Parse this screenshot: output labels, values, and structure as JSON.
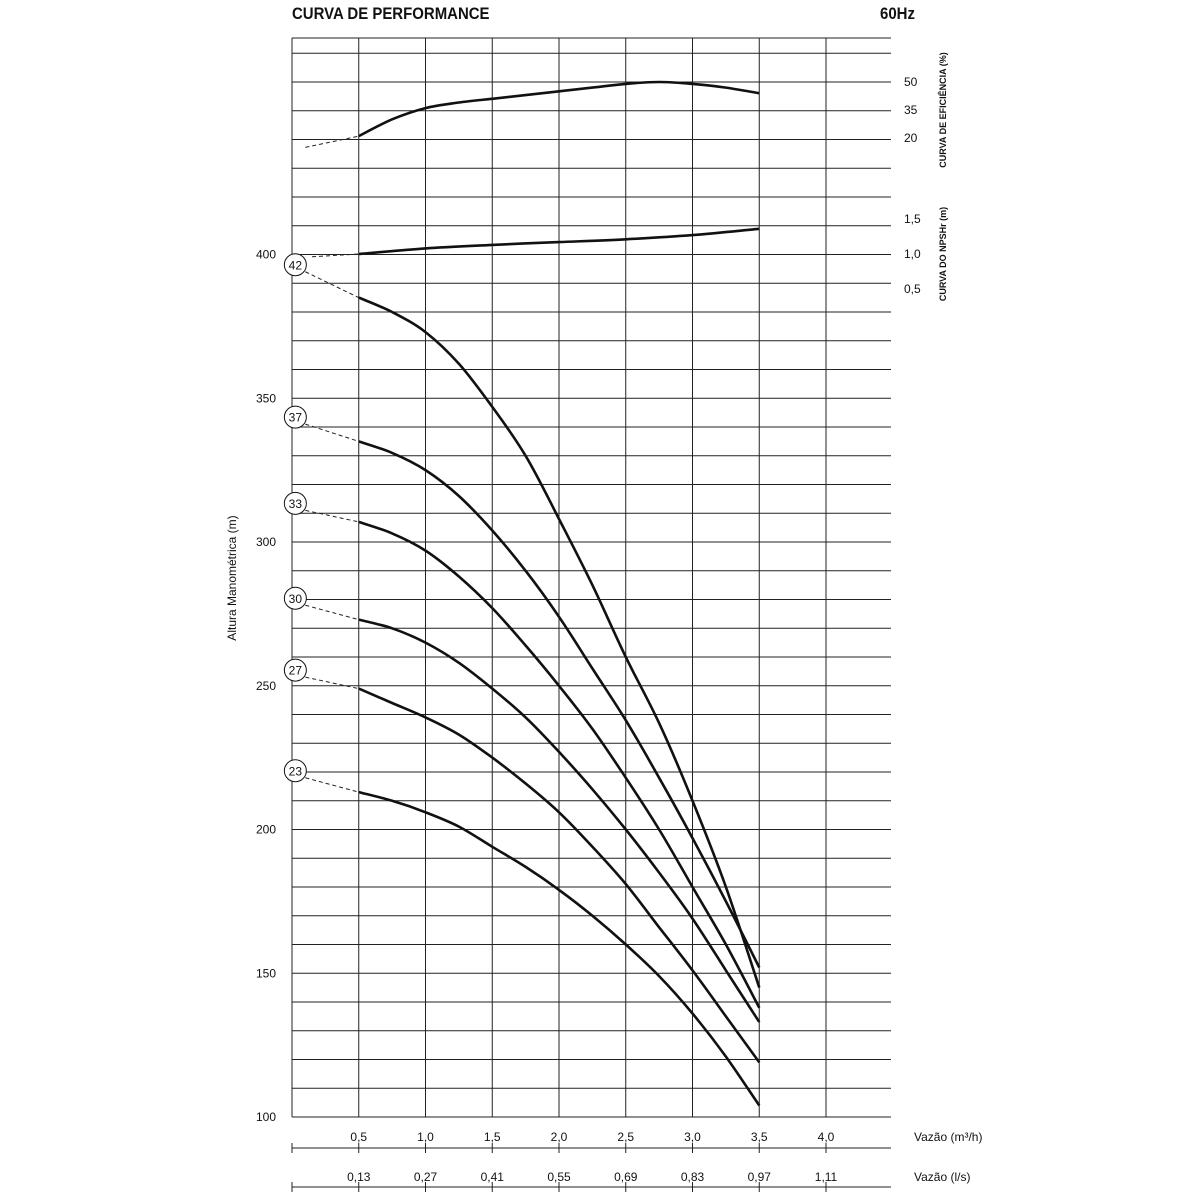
{
  "header": {
    "title": "CURVA DE PERFORMANCE",
    "frequency": "60Hz"
  },
  "chart_data": {
    "type": "line",
    "title": "CURVA DE PERFORMANCE",
    "subtitle": "60Hz",
    "ylabel": "Altura Manométrica (m)",
    "xlabel": "Vazão (m³/h)",
    "xlabel2": "Vazão (l/s)",
    "xlim": [
      0,
      4.0
    ],
    "ylim": [
      100,
      400
    ],
    "grid": true,
    "x_ticks": [
      "0,5",
      "1,0",
      "1,5",
      "2,0",
      "2,5",
      "3,0",
      "3,5",
      "4,0"
    ],
    "x_ticks_values": [
      0.5,
      1.0,
      1.5,
      2.0,
      2.5,
      3.0,
      3.5,
      4.0
    ],
    "x2_ticks": [
      "0,13",
      "0,27",
      "0,41",
      "0,55",
      "0,69",
      "0,83",
      "0,97",
      "1,11"
    ],
    "y_ticks": [
      "100",
      "150",
      "200",
      "250",
      "300",
      "350",
      "400"
    ],
    "y_ticks_values": [
      100,
      150,
      200,
      250,
      300,
      350,
      400
    ],
    "head_series": [
      {
        "name": "42",
        "dashed": [
          [
            0.1,
            394
          ],
          [
            0.5,
            385
          ]
        ],
        "x": [
          0.5,
          0.75,
          1.0,
          1.25,
          1.5,
          1.75,
          2.0,
          2.25,
          2.5,
          2.75,
          3.0,
          3.25,
          3.5
        ],
        "y": [
          385,
          380,
          373,
          362,
          347,
          330,
          308,
          285,
          260,
          237,
          210,
          180,
          145
        ]
      },
      {
        "name": "37",
        "dashed": [
          [
            0.1,
            341
          ],
          [
            0.5,
            335
          ]
        ],
        "x": [
          0.5,
          0.75,
          1.0,
          1.25,
          1.5,
          1.75,
          2.0,
          2.25,
          2.5,
          2.75,
          3.0,
          3.25,
          3.5
        ],
        "y": [
          335,
          331,
          325,
          316,
          304,
          290,
          274,
          256,
          238,
          218,
          197,
          175,
          152
        ]
      },
      {
        "name": "33",
        "dashed": [
          [
            0.1,
            311
          ],
          [
            0.5,
            307
          ]
        ],
        "x": [
          0.5,
          0.75,
          1.0,
          1.25,
          1.5,
          1.75,
          2.0,
          2.25,
          2.5,
          2.75,
          3.0,
          3.25,
          3.5
        ],
        "y": [
          307,
          303,
          297,
          288,
          277,
          264,
          250,
          235,
          218,
          200,
          180,
          160,
          138
        ]
      },
      {
        "name": "30",
        "dashed": [
          [
            0.1,
            278
          ],
          [
            0.5,
            273
          ]
        ],
        "x": [
          0.5,
          0.75,
          1.0,
          1.25,
          1.5,
          1.75,
          2.0,
          2.25,
          2.5,
          2.75,
          3.0,
          3.25,
          3.5
        ],
        "y": [
          273,
          270,
          265,
          258,
          249,
          239,
          227,
          214,
          200,
          185,
          169,
          151,
          133
        ]
      },
      {
        "name": "27",
        "dashed": [
          [
            0.1,
            253
          ],
          [
            0.5,
            249
          ]
        ],
        "x": [
          0.5,
          0.75,
          1.0,
          1.25,
          1.5,
          1.75,
          2.0,
          2.25,
          2.5,
          2.75,
          3.0,
          3.25,
          3.5
        ],
        "y": [
          249,
          244,
          239,
          233,
          225,
          216,
          206,
          194,
          181,
          166,
          151,
          135,
          119
        ]
      },
      {
        "name": "23",
        "dashed": [
          [
            0.1,
            218
          ],
          [
            0.5,
            213
          ]
        ],
        "x": [
          0.5,
          0.75,
          1.0,
          1.25,
          1.5,
          1.75,
          2.0,
          2.25,
          2.5,
          2.75,
          3.0,
          3.25,
          3.5
        ],
        "y": [
          213,
          210,
          206,
          201,
          194,
          187,
          179,
          170,
          160,
          149,
          136,
          121,
          104
        ]
      }
    ],
    "efficiency": {
      "label": "CURVA DE EFICIÊNCIA (%)",
      "ticks": [
        "50",
        "35",
        "20"
      ],
      "ticks_values": [
        50,
        35,
        20
      ],
      "dashed": [
        [
          0.1,
          15
        ],
        [
          0.5,
          21
        ]
      ],
      "x": [
        0.5,
        0.75,
        1.0,
        1.25,
        1.5,
        1.75,
        2.0,
        2.25,
        2.5,
        2.75,
        3.0,
        3.25,
        3.5
      ],
      "y": [
        21,
        30,
        36,
        39,
        41,
        43,
        45,
        47,
        49,
        50,
        49,
        47,
        44
      ]
    },
    "npshr": {
      "label": "CURVA DO NPSHr (m)",
      "ticks": [
        "1,5",
        "1,0",
        "0,5"
      ],
      "ticks_values": [
        1.5,
        1.0,
        0.5
      ],
      "dashed": [
        [
          0.15,
          0.96
        ],
        [
          0.5,
          1.0
        ]
      ],
      "x": [
        0.5,
        1.0,
        1.5,
        2.0,
        2.5,
        3.0,
        3.5
      ],
      "y": [
        1.0,
        1.08,
        1.13,
        1.17,
        1.21,
        1.27,
        1.36
      ]
    }
  }
}
